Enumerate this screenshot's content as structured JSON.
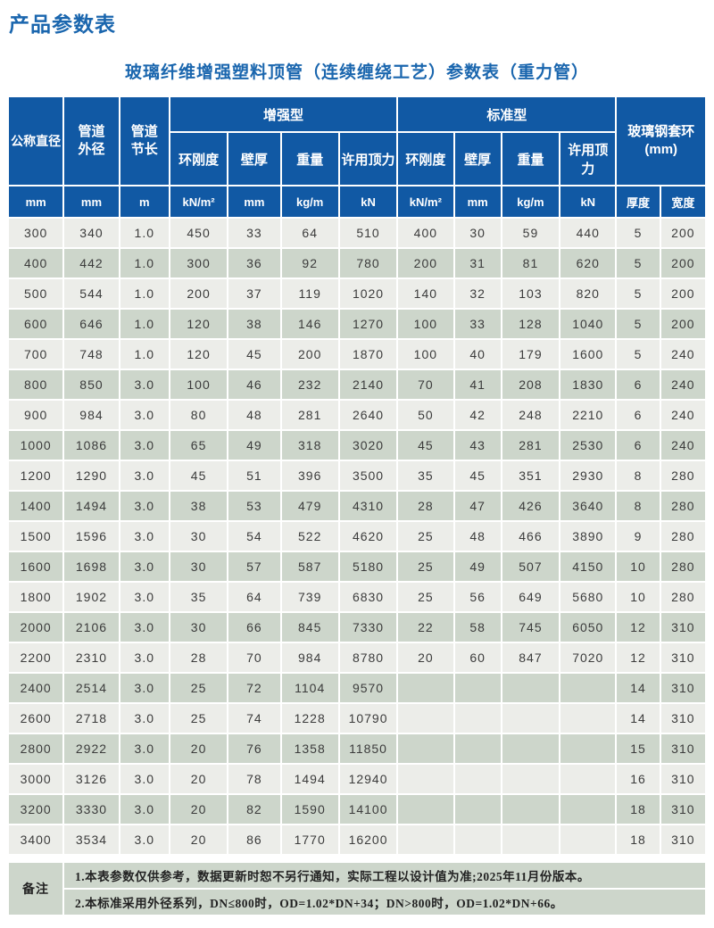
{
  "page": {
    "title": "产品参数表",
    "subtitle": "玻璃纤维增强塑料顶管（连续缠绕工艺）参数表（重力管）"
  },
  "colors": {
    "header_blue": "#1159A4",
    "title_blue": "#1A66AE",
    "row_gray": "#ECEDE9",
    "row_green": "#CDD6CB"
  },
  "table": {
    "headers": {
      "nominal_diameter": "公称直径",
      "outer_diameter": "管道\n外径",
      "section_length": "管道\n节长",
      "reinforced_group": "增强型",
      "standard_group": "标准型",
      "collar_group": "玻璃钢套环\n(mm)",
      "ring_stiffness": "环刚度",
      "wall_thickness": "壁厚",
      "weight": "重量",
      "jacking_force": "许用顶力",
      "collar_thickness": "厚度",
      "collar_width": "宽度"
    },
    "units": [
      "mm",
      "mm",
      "m",
      "kN/m²",
      "mm",
      "kg/m",
      "kN",
      "kN/m²",
      "mm",
      "kg/m",
      "kN"
    ],
    "rows": [
      [
        "300",
        "340",
        "1.0",
        "450",
        "33",
        "64",
        "510",
        "400",
        "30",
        "59",
        "440",
        "5",
        "200"
      ],
      [
        "400",
        "442",
        "1.0",
        "300",
        "36",
        "92",
        "780",
        "200",
        "31",
        "81",
        "620",
        "5",
        "200"
      ],
      [
        "500",
        "544",
        "1.0",
        "200",
        "37",
        "119",
        "1020",
        "140",
        "32",
        "103",
        "820",
        "5",
        "200"
      ],
      [
        "600",
        "646",
        "1.0",
        "120",
        "38",
        "146",
        "1270",
        "100",
        "33",
        "128",
        "1040",
        "5",
        "200"
      ],
      [
        "700",
        "748",
        "1.0",
        "120",
        "45",
        "200",
        "1870",
        "100",
        "40",
        "179",
        "1600",
        "5",
        "240"
      ],
      [
        "800",
        "850",
        "3.0",
        "100",
        "46",
        "232",
        "2140",
        "70",
        "41",
        "208",
        "1830",
        "6",
        "240"
      ],
      [
        "900",
        "984",
        "3.0",
        "80",
        "48",
        "281",
        "2640",
        "50",
        "42",
        "248",
        "2210",
        "6",
        "240"
      ],
      [
        "1000",
        "1086",
        "3.0",
        "65",
        "49",
        "318",
        "3020",
        "45",
        "43",
        "281",
        "2530",
        "6",
        "240"
      ],
      [
        "1200",
        "1290",
        "3.0",
        "45",
        "51",
        "396",
        "3500",
        "35",
        "45",
        "351",
        "2930",
        "8",
        "280"
      ],
      [
        "1400",
        "1494",
        "3.0",
        "38",
        "53",
        "479",
        "4310",
        "28",
        "47",
        "426",
        "3640",
        "8",
        "280"
      ],
      [
        "1500",
        "1596",
        "3.0",
        "30",
        "54",
        "522",
        "4620",
        "25",
        "48",
        "466",
        "3890",
        "9",
        "280"
      ],
      [
        "1600",
        "1698",
        "3.0",
        "30",
        "57",
        "587",
        "5180",
        "25",
        "49",
        "507",
        "4150",
        "10",
        "280"
      ],
      [
        "1800",
        "1902",
        "3.0",
        "35",
        "64",
        "739",
        "6830",
        "25",
        "56",
        "649",
        "5680",
        "10",
        "280"
      ],
      [
        "2000",
        "2106",
        "3.0",
        "30",
        "66",
        "845",
        "7330",
        "22",
        "58",
        "745",
        "6050",
        "12",
        "310"
      ],
      [
        "2200",
        "2310",
        "3.0",
        "28",
        "70",
        "984",
        "8780",
        "20",
        "60",
        "847",
        "7020",
        "12",
        "310"
      ],
      [
        "2400",
        "2514",
        "3.0",
        "25",
        "72",
        "1104",
        "9570",
        "",
        "",
        "",
        "",
        "14",
        "310"
      ],
      [
        "2600",
        "2718",
        "3.0",
        "25",
        "74",
        "1228",
        "10790",
        "",
        "",
        "",
        "",
        "14",
        "310"
      ],
      [
        "2800",
        "2922",
        "3.0",
        "20",
        "76",
        "1358",
        "11850",
        "",
        "",
        "",
        "",
        "15",
        "310"
      ],
      [
        "3000",
        "3126",
        "3.0",
        "20",
        "78",
        "1494",
        "12940",
        "",
        "",
        "",
        "",
        "16",
        "310"
      ],
      [
        "3200",
        "3330",
        "3.0",
        "20",
        "82",
        "1590",
        "14100",
        "",
        "",
        "",
        "",
        "18",
        "310"
      ],
      [
        "3400",
        "3534",
        "3.0",
        "20",
        "86",
        "1770",
        "16200",
        "",
        "",
        "",
        "",
        "18",
        "310"
      ]
    ]
  },
  "notes": {
    "label": "备注",
    "items": [
      "1.本表参数仅供参考，数据更新时恕不另行通知，实际工程以设计值为准;2025年11月份版本。",
      "2.本标准采用外径系列，DN≤800时，OD=1.02*DN+34；DN>800时，OD=1.02*DN+66。"
    ]
  }
}
